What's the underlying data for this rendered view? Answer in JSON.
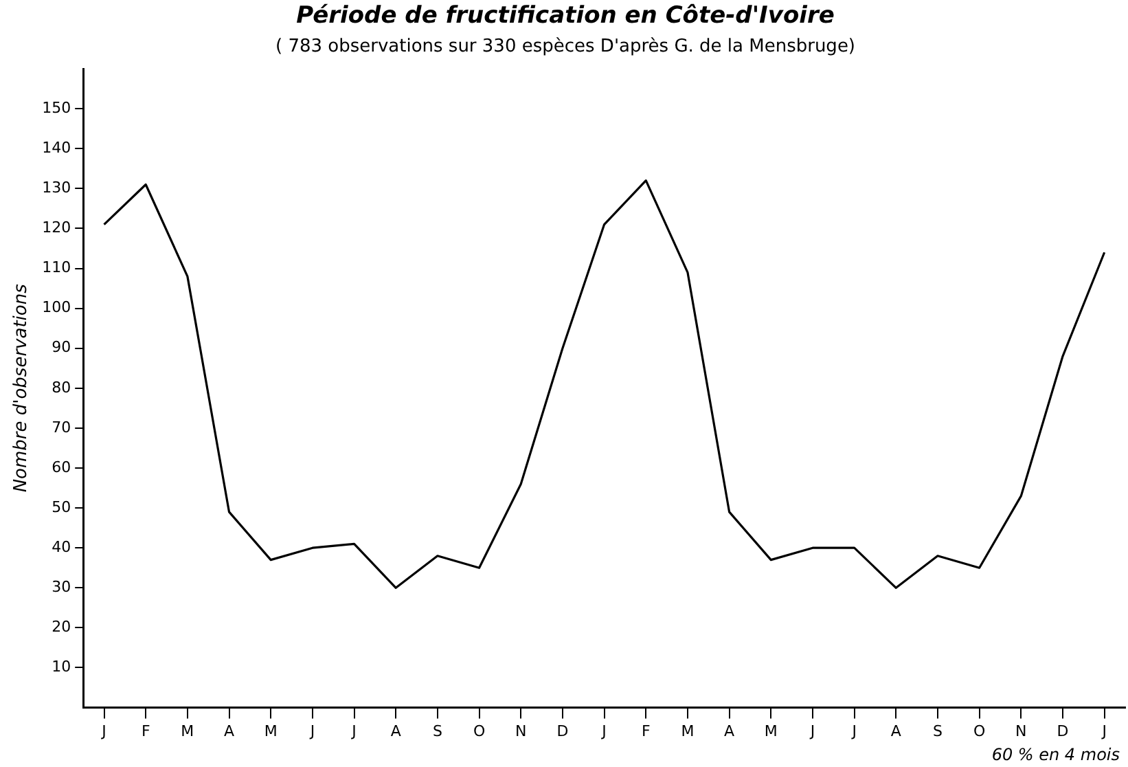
{
  "chart_data": {
    "type": "line",
    "title": "Période de fructification en Côte-d'Ivoire",
    "subtitle": "( 783 observations sur 330 espèces D'après G. de la Mensbruge)",
    "ylabel": "Nombre d'observations",
    "annotations": [
      "60 % en 4 mois"
    ],
    "categories": [
      "J",
      "F",
      "M",
      "A",
      "M",
      "J",
      "J",
      "A",
      "S",
      "O",
      "N",
      "D",
      "J",
      "F",
      "M",
      "A",
      "M",
      "J",
      "J",
      "A",
      "S",
      "O",
      "N",
      "D",
      "J"
    ],
    "series": [
      {
        "color": "#000000",
        "values": [
          121,
          131,
          108,
          49,
          37,
          40,
          41,
          30,
          38,
          35,
          56,
          90,
          121,
          132,
          109,
          49,
          37,
          40,
          40,
          30,
          38,
          35,
          53,
          88,
          114
        ]
      }
    ],
    "ylim": [
      0,
      160
    ],
    "yticks": [
      10,
      20,
      30,
      40,
      50,
      60,
      70,
      80,
      90,
      100,
      110,
      120,
      130,
      140,
      150
    ],
    "grid": false,
    "legend": false,
    "marker": "none",
    "line_style": "solid"
  }
}
